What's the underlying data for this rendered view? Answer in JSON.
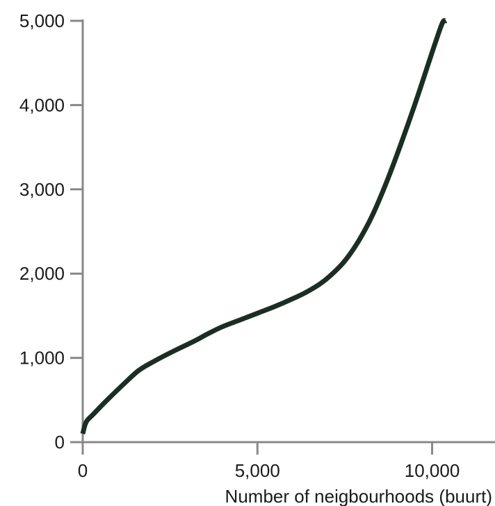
{
  "chart_data": {
    "type": "line",
    "title": "",
    "xlabel": "Number of neigbourhoods (buurt)",
    "ylabel": "",
    "xlim": [
      0,
      11800
    ],
    "ylim": [
      0,
      5000
    ],
    "x_ticks": [
      0,
      5000,
      10000
    ],
    "x_tick_labels": [
      "0",
      "5,000",
      "10,000"
    ],
    "y_ticks": [
      0,
      1000,
      2000,
      3000,
      4000,
      5000
    ],
    "y_tick_labels": [
      "0",
      "1,000",
      "2,000",
      "3,000",
      "4,000",
      "5,000"
    ],
    "grid": false,
    "legend": "none",
    "line_color": "#1b2e24",
    "axis_color": "#888888",
    "series": [
      {
        "x": [
          0,
          100,
          300,
          700,
          1200,
          1600,
          2000,
          2600,
          3200,
          3600,
          4000,
          4500,
          5000,
          5500,
          6000,
          6400,
          6800,
          7100,
          7500,
          7900,
          8300,
          8700,
          9100,
          9500,
          9900,
          10100,
          10300,
          10400
        ],
        "y": [
          100,
          240,
          330,
          500,
          700,
          850,
          950,
          1080,
          1200,
          1290,
          1370,
          1450,
          1530,
          1610,
          1700,
          1780,
          1880,
          1980,
          2150,
          2390,
          2700,
          3090,
          3530,
          4000,
          4500,
          4750,
          4980,
          5000
        ]
      }
    ]
  }
}
